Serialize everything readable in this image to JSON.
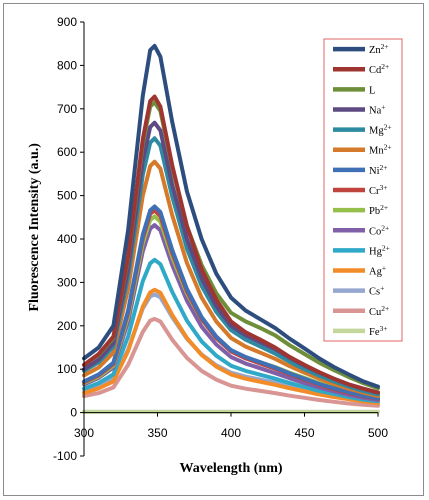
{
  "chart_data": {
    "type": "line",
    "title": "",
    "xlabel": "Wavelength (nm)",
    "ylabel": "Fluorescence Intensity (a.u.)",
    "xlim": [
      300,
      500
    ],
    "ylim": [
      -100,
      900
    ],
    "xticks": [
      "300",
      "350",
      "400",
      "450",
      "500"
    ],
    "yticks": [
      "-100",
      "0",
      "100",
      "200",
      "300",
      "400",
      "500",
      "600",
      "700",
      "800",
      "900"
    ],
    "grid": false,
    "legend_position": "right",
    "x": [
      300,
      310,
      320,
      330,
      340,
      345,
      348,
      352,
      360,
      370,
      380,
      390,
      400,
      410,
      420,
      430,
      440,
      450,
      460,
      470,
      480,
      490,
      500
    ],
    "series": [
      {
        "name": "Zn2+",
        "name_base": "Zn",
        "name_sup": "2+",
        "color": "#2E4D7F",
        "values": [
          125,
          150,
          200,
          420,
          730,
          835,
          845,
          820,
          670,
          510,
          400,
          320,
          265,
          235,
          215,
          195,
          170,
          148,
          125,
          105,
          88,
          72,
          60
        ]
      },
      {
        "name": "Cd2+",
        "name_base": "Cd",
        "name_sup": "2+",
        "color": "#9E3530",
        "values": [
          110,
          135,
          175,
          360,
          630,
          718,
          728,
          705,
          570,
          430,
          330,
          260,
          210,
          185,
          168,
          150,
          128,
          110,
          93,
          78,
          65,
          55,
          46
        ]
      },
      {
        "name": "L",
        "name_base": "L",
        "name_sup": "",
        "color": "#6E8E3A",
        "values": [
          110,
          133,
          172,
          355,
          620,
          705,
          715,
          695,
          565,
          430,
          340,
          275,
          230,
          210,
          195,
          178,
          155,
          135,
          115,
          98,
          82,
          68,
          56
        ]
      },
      {
        "name": "Na+",
        "name_base": "Na",
        "name_sup": "+",
        "color": "#5E4A82",
        "values": [
          100,
          122,
          160,
          330,
          580,
          658,
          668,
          650,
          525,
          400,
          310,
          245,
          200,
          178,
          162,
          146,
          126,
          108,
          92,
          78,
          65,
          55,
          46
        ]
      },
      {
        "name": "Mg2+",
        "name_base": "Mg",
        "name_sup": "2+",
        "color": "#2E8AA0",
        "values": [
          96,
          116,
          152,
          312,
          548,
          622,
          632,
          615,
          498,
          378,
          292,
          232,
          190,
          168,
          152,
          136,
          117,
          100,
          85,
          72,
          60,
          50,
          42
        ]
      },
      {
        "name": "Mn2+",
        "name_base": "Mn",
        "name_sup": "2+",
        "color": "#D47A2A",
        "values": [
          86,
          104,
          138,
          285,
          500,
          568,
          578,
          562,
          455,
          345,
          265,
          210,
          172,
          152,
          138,
          124,
          107,
          92,
          78,
          66,
          55,
          46,
          38
        ]
      },
      {
        "name": "Ni2+",
        "name_base": "Ni",
        "name_sup": "2+",
        "color": "#3F6FB5",
        "values": [
          72,
          88,
          115,
          235,
          410,
          466,
          475,
          462,
          375,
          285,
          220,
          175,
          144,
          128,
          116,
          104,
          90,
          78,
          66,
          56,
          47,
          39,
          33
        ]
      },
      {
        "name": "Cr3+",
        "name_base": "Cr",
        "name_sup": "3+",
        "color": "#C0443E",
        "values": [
          70,
          86,
          112,
          230,
          402,
          458,
          466,
          453,
          368,
          280,
          216,
          172,
          141,
          125,
          113,
          101,
          88,
          76,
          64,
          54,
          45,
          38,
          32
        ]
      },
      {
        "name": "Pb2+",
        "name_base": "Pb",
        "name_sup": "2+",
        "color": "#96BE4B",
        "values": [
          68,
          83,
          108,
          222,
          390,
          444,
          452,
          440,
          358,
          275,
          215,
          172,
          142,
          127,
          116,
          105,
          92,
          80,
          68,
          58,
          49,
          41,
          35
        ]
      },
      {
        "name": "Co2+",
        "name_base": "Co",
        "name_sup": "2+",
        "color": "#7F5FA8",
        "values": [
          65,
          80,
          104,
          210,
          372,
          424,
          432,
          420,
          340,
          258,
          198,
          157,
          128,
          113,
          102,
          91,
          79,
          68,
          58,
          49,
          41,
          34,
          29
        ]
      },
      {
        "name": "Hg2+",
        "name_base": "Hg",
        "name_sup": "2+",
        "color": "#2FA9C7",
        "values": [
          55,
          68,
          88,
          175,
          303,
          344,
          352,
          342,
          278,
          212,
          164,
          131,
          108,
          96,
          87,
          78,
          68,
          59,
          50,
          43,
          36,
          30,
          26
        ]
      },
      {
        "name": "Ag+",
        "name_base": "Ag",
        "name_sup": "+",
        "color": "#F28C28",
        "values": [
          45,
          56,
          72,
          142,
          244,
          277,
          283,
          276,
          225,
          172,
          133,
          106,
          88,
          78,
          71,
          64,
          56,
          49,
          42,
          36,
          31,
          26,
          22
        ]
      },
      {
        "name": "Cs+",
        "name_base": "Cs",
        "name_sup": "+",
        "color": "#95A7CF",
        "values": [
          48,
          60,
          78,
          145,
          240,
          268,
          272,
          266,
          220,
          170,
          134,
          109,
          92,
          83,
          76,
          69,
          61,
          54,
          47,
          41,
          36,
          31,
          27
        ]
      },
      {
        "name": "Cu2+",
        "name_base": "Cu",
        "name_sup": "2+",
        "color": "#D99594",
        "values": [
          38,
          45,
          58,
          110,
          186,
          212,
          216,
          210,
          168,
          126,
          96,
          76,
          62,
          55,
          50,
          45,
          39,
          34,
          29,
          25,
          21,
          18,
          16
        ]
      },
      {
        "name": "Fe3+",
        "name_base": "Fe",
        "name_sup": "3+",
        "color": "#C3D69B",
        "values": [
          2,
          2,
          2,
          2,
          2,
          2,
          2,
          2,
          2,
          2,
          2,
          2,
          2,
          2,
          2,
          2,
          2,
          2,
          2,
          2,
          2,
          2,
          2
        ]
      }
    ]
  }
}
